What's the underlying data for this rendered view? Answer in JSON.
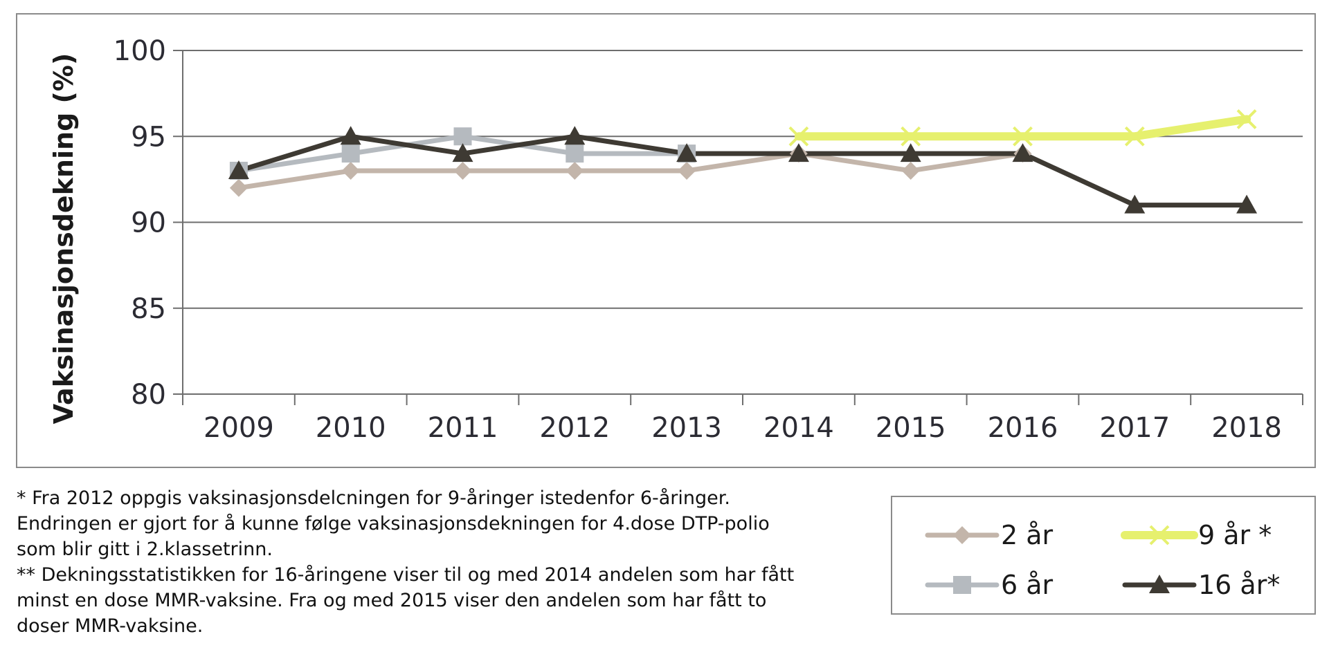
{
  "chart_data": {
    "type": "line",
    "title": "",
    "xlabel": "",
    "ylabel": "Vaksinasjonsdekning (%)",
    "ylim": [
      80,
      100
    ],
    "yticks": [
      "80",
      "85",
      "90",
      "95",
      "100"
    ],
    "categories": [
      "2009",
      "2010",
      "2011",
      "2012",
      "2013",
      "2014",
      "2015",
      "2016",
      "2017",
      "2018"
    ],
    "grid": true,
    "legend_position": "bottom-right",
    "series": [
      {
        "name": "2 år",
        "color": "#c3b5aa",
        "marker": "diamond",
        "values": [
          92,
          93,
          93,
          93,
          93,
          94,
          93,
          94,
          null,
          null
        ]
      },
      {
        "name": "6 år",
        "color": "#b5babf",
        "marker": "square",
        "values": [
          93,
          94,
          95,
          94,
          94,
          null,
          null,
          null,
          null,
          null
        ]
      },
      {
        "name": "9 år *",
        "color": "#e6f06e",
        "marker": "x",
        "values": [
          null,
          null,
          null,
          null,
          null,
          95,
          95,
          95,
          95,
          96
        ]
      },
      {
        "name": "16 år*",
        "color": "#3e3a33",
        "marker": "triangle",
        "values": [
          93,
          95,
          94,
          95,
          94,
          94,
          94,
          94,
          91,
          91
        ]
      }
    ]
  },
  "footnotes": [
    "* Fra 2012 oppgis vaksinasjonsdelcningen for 9-åringer istedenfor 6-åringer.",
    "Endringen er gjort for å kunne følge vaksinasjonsdekningen for 4.dose DTP-polio",
    "som blir gitt i 2.klassetrinn.",
    "** Dekningsstatistikken for 16-åringene viser til og med 2014 andelen som har fått",
    "minst en dose MMR-vaksine. Fra og med 2015 viser den andelen som har fått to",
    "doser MMR-vaksine."
  ]
}
